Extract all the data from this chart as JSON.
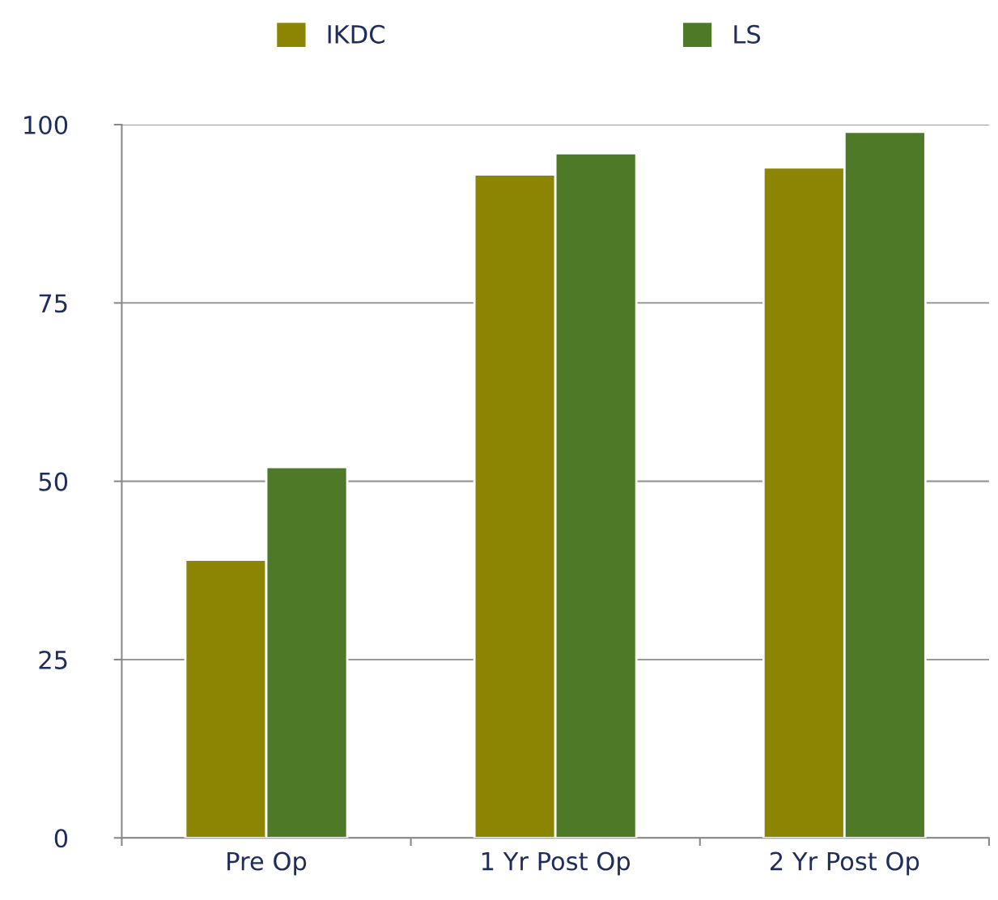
{
  "chart_data": {
    "type": "bar",
    "categories": [
      "Pre Op",
      "1 Yr Post Op",
      "2 Yr Post Op"
    ],
    "series": [
      {
        "name": "IKDC",
        "color": "#8b8503",
        "values": [
          39,
          93,
          94
        ]
      },
      {
        "name": "LS",
        "color": "#4e7a28",
        "values": [
          52,
          96,
          99
        ]
      }
    ],
    "ylim": [
      0,
      100
    ],
    "yticks": [
      0,
      25,
      50,
      75,
      100
    ],
    "grid": "y",
    "legend": "top"
  }
}
